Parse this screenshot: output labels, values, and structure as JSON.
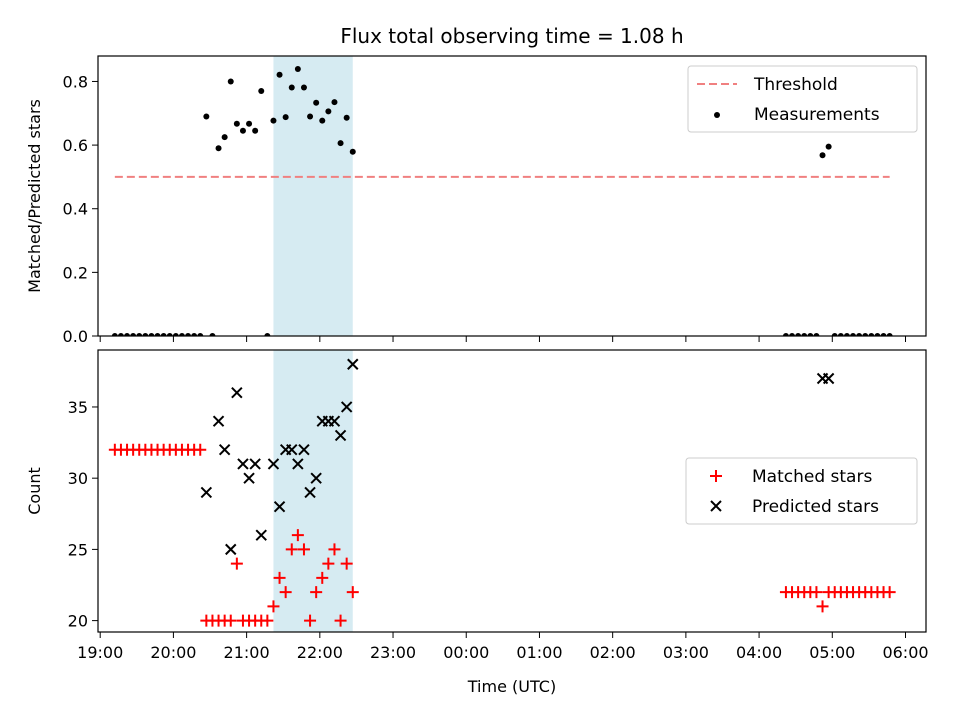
{
  "title": "Flux total observing time = 1.08 h",
  "colors": {
    "threshold": "#f08080",
    "measurement": "#000000",
    "matched": "#ff0000",
    "predicted": "#000000",
    "highlight": "#add8e6"
  },
  "chart_data": [
    {
      "type": "scatter",
      "panel": "top",
      "ylabel": "Matched/Predicted stars",
      "xlabel": "",
      "ylim": [
        0,
        0.88
      ],
      "yticks": [
        0.0,
        0.2,
        0.4,
        0.6,
        0.8
      ],
      "ytick_labels": [
        "0.0",
        "0.2",
        "0.4",
        "0.6",
        "0.8"
      ],
      "xlim_hours": [
        18.97,
        30.28
      ],
      "highlight_span": [
        "21:22",
        "22:27"
      ],
      "legend": {
        "position": "upper right",
        "entries": [
          "Threshold",
          "Measurements"
        ]
      },
      "threshold": {
        "name": "Threshold",
        "value": 0.5,
        "x_start": "19:12",
        "x_end": "05:47"
      },
      "series": [
        {
          "name": "Measurements",
          "points": [
            [
              "19:12",
              0
            ],
            [
              "19:17",
              0
            ],
            [
              "19:22",
              0
            ],
            [
              "19:27",
              0
            ],
            [
              "19:32",
              0
            ],
            [
              "19:37",
              0
            ],
            [
              "19:42",
              0
            ],
            [
              "19:47",
              0
            ],
            [
              "19:52",
              0
            ],
            [
              "19:57",
              0
            ],
            [
              "20:02",
              0
            ],
            [
              "20:07",
              0
            ],
            [
              "20:12",
              0
            ],
            [
              "20:17",
              0
            ],
            [
              "20:22",
              0
            ],
            [
              "20:27",
              0.69
            ],
            [
              "20:32",
              0
            ],
            [
              "20:37",
              0.59
            ],
            [
              "20:42",
              0.625
            ],
            [
              "20:47",
              0.8
            ],
            [
              "20:52",
              0.667
            ],
            [
              "20:57",
              0.645
            ],
            [
              "21:02",
              0.667
            ],
            [
              "21:07",
              0.645
            ],
            [
              "21:12",
              0.77
            ],
            [
              "21:17",
              0
            ],
            [
              "21:22",
              0.677
            ],
            [
              "21:27",
              0.821
            ],
            [
              "21:32",
              0.688
            ],
            [
              "21:37",
              0.781
            ],
            [
              "21:42",
              0.839
            ],
            [
              "21:47",
              0.781
            ],
            [
              "21:52",
              0.69
            ],
            [
              "21:57",
              0.733
            ],
            [
              "22:02",
              0.677
            ],
            [
              "22:07",
              0.706
            ],
            [
              "22:12",
              0.735
            ],
            [
              "22:17",
              0.606
            ],
            [
              "22:22",
              0.686
            ],
            [
              "22:27",
              0.579
            ],
            [
              "04:22",
              0
            ],
            [
              "04:27",
              0
            ],
            [
              "04:32",
              0
            ],
            [
              "04:37",
              0
            ],
            [
              "04:42",
              0
            ],
            [
              "04:47",
              0
            ],
            [
              "04:52",
              0.568
            ],
            [
              "04:57",
              0.595
            ],
            [
              "05:02",
              0
            ],
            [
              "05:07",
              0
            ],
            [
              "05:12",
              0
            ],
            [
              "05:17",
              0
            ],
            [
              "05:22",
              0
            ],
            [
              "05:27",
              0
            ],
            [
              "05:32",
              0
            ],
            [
              "05:37",
              0
            ],
            [
              "05:42",
              0
            ],
            [
              "05:47",
              0
            ]
          ]
        }
      ]
    },
    {
      "type": "scatter",
      "panel": "bottom",
      "ylabel": "Count",
      "xlabel": "Time (UTC)",
      "ylim": [
        19.2,
        39.0
      ],
      "yticks": [
        20,
        25,
        30,
        35
      ],
      "ytick_labels": [
        "20",
        "25",
        "30",
        "35"
      ],
      "xlim_hours": [
        18.97,
        30.28
      ],
      "xticks": [
        19,
        20,
        21,
        22,
        23,
        24,
        25,
        26,
        27,
        28,
        29,
        30
      ],
      "xtick_labels": [
        "19:00",
        "20:00",
        "21:00",
        "22:00",
        "23:00",
        "00:00",
        "01:00",
        "02:00",
        "03:00",
        "04:00",
        "05:00",
        "06:00"
      ],
      "highlight_span": [
        "21:22",
        "22:27"
      ],
      "legend": {
        "position": "center right",
        "entries": [
          "Matched stars",
          "Predicted stars"
        ]
      },
      "series": [
        {
          "name": "Matched stars",
          "marker": "plus",
          "points": [
            [
              "19:12",
              32
            ],
            [
              "19:17",
              32
            ],
            [
              "19:22",
              32
            ],
            [
              "19:27",
              32
            ],
            [
              "19:32",
              32
            ],
            [
              "19:37",
              32
            ],
            [
              "19:42",
              32
            ],
            [
              "19:47",
              32
            ],
            [
              "19:52",
              32
            ],
            [
              "19:57",
              32
            ],
            [
              "20:02",
              32
            ],
            [
              "20:07",
              32
            ],
            [
              "20:12",
              32
            ],
            [
              "20:17",
              32
            ],
            [
              "20:22",
              32
            ],
            [
              "20:27",
              20
            ],
            [
              "20:32",
              20
            ],
            [
              "20:37",
              20
            ],
            [
              "20:42",
              20
            ],
            [
              "20:47",
              20
            ],
            [
              "20:52",
              24
            ],
            [
              "20:57",
              20
            ],
            [
              "21:02",
              20
            ],
            [
              "21:07",
              20
            ],
            [
              "21:12",
              20
            ],
            [
              "21:17",
              20
            ],
            [
              "21:22",
              21
            ],
            [
              "21:27",
              23
            ],
            [
              "21:32",
              22
            ],
            [
              "21:37",
              25
            ],
            [
              "21:42",
              26
            ],
            [
              "21:47",
              25
            ],
            [
              "21:52",
              20
            ],
            [
              "21:57",
              22
            ],
            [
              "22:02",
              23
            ],
            [
              "22:07",
              24
            ],
            [
              "22:12",
              25
            ],
            [
              "22:17",
              20
            ],
            [
              "22:22",
              24
            ],
            [
              "22:27",
              22
            ],
            [
              "04:22",
              22
            ],
            [
              "04:27",
              22
            ],
            [
              "04:32",
              22
            ],
            [
              "04:37",
              22
            ],
            [
              "04:42",
              22
            ],
            [
              "04:47",
              22
            ],
            [
              "04:52",
              21
            ],
            [
              "04:57",
              22
            ],
            [
              "05:02",
              22
            ],
            [
              "05:07",
              22
            ],
            [
              "05:12",
              22
            ],
            [
              "05:17",
              22
            ],
            [
              "05:22",
              22
            ],
            [
              "05:27",
              22
            ],
            [
              "05:32",
              22
            ],
            [
              "05:37",
              22
            ],
            [
              "05:42",
              22
            ],
            [
              "05:47",
              22
            ]
          ]
        },
        {
          "name": "Predicted stars",
          "marker": "x",
          "points": [
            [
              "20:27",
              29
            ],
            [
              "20:37",
              34
            ],
            [
              "20:42",
              32
            ],
            [
              "20:47",
              25
            ],
            [
              "20:52",
              36
            ],
            [
              "20:57",
              31
            ],
            [
              "21:02",
              30
            ],
            [
              "21:07",
              31
            ],
            [
              "21:12",
              26
            ],
            [
              "21:22",
              31
            ],
            [
              "21:27",
              28
            ],
            [
              "21:32",
              32
            ],
            [
              "21:37",
              32
            ],
            [
              "21:42",
              31
            ],
            [
              "21:47",
              32
            ],
            [
              "21:52",
              29
            ],
            [
              "21:57",
              30
            ],
            [
              "22:02",
              34
            ],
            [
              "22:07",
              34
            ],
            [
              "22:12",
              34
            ],
            [
              "22:17",
              33
            ],
            [
              "22:22",
              35
            ],
            [
              "22:27",
              38
            ],
            [
              "04:52",
              37
            ],
            [
              "04:57",
              37
            ]
          ]
        }
      ]
    }
  ]
}
